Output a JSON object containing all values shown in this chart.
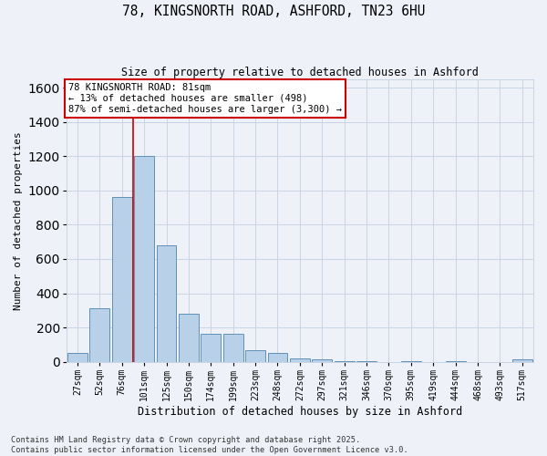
{
  "title_line1": "78, KINGSNORTH ROAD, ASHFORD, TN23 6HU",
  "title_line2": "Size of property relative to detached houses in Ashford",
  "xlabel": "Distribution of detached houses by size in Ashford",
  "ylabel": "Number of detached properties",
  "categories": [
    "27sqm",
    "52sqm",
    "76sqm",
    "101sqm",
    "125sqm",
    "150sqm",
    "174sqm",
    "199sqm",
    "223sqm",
    "248sqm",
    "272sqm",
    "297sqm",
    "321sqm",
    "346sqm",
    "370sqm",
    "395sqm",
    "419sqm",
    "444sqm",
    "468sqm",
    "493sqm",
    "517sqm"
  ],
  "values": [
    50,
    310,
    960,
    1200,
    680,
    280,
    165,
    165,
    70,
    50,
    20,
    15,
    5,
    5,
    0,
    5,
    0,
    5,
    0,
    0,
    15
  ],
  "bar_color": "#b8d0e8",
  "bar_edge_color": "#6090b8",
  "grid_color": "#c8d4e4",
  "bg_color": "#eef2f8",
  "vline_color": "#cc0000",
  "vline_x_index": 2.5,
  "annotation_text": "78 KINGSNORTH ROAD: 81sqm\n← 13% of detached houses are smaller (498)\n87% of semi-detached houses are larger (3,300) →",
  "annotation_box_edgecolor": "#cc0000",
  "footnote_line1": "Contains HM Land Registry data © Crown copyright and database right 2025.",
  "footnote_line2": "Contains public sector information licensed under the Open Government Licence v3.0.",
  "ylim": [
    0,
    1650
  ],
  "yticks": [
    0,
    200,
    400,
    600,
    800,
    1000,
    1200,
    1400,
    1600
  ]
}
